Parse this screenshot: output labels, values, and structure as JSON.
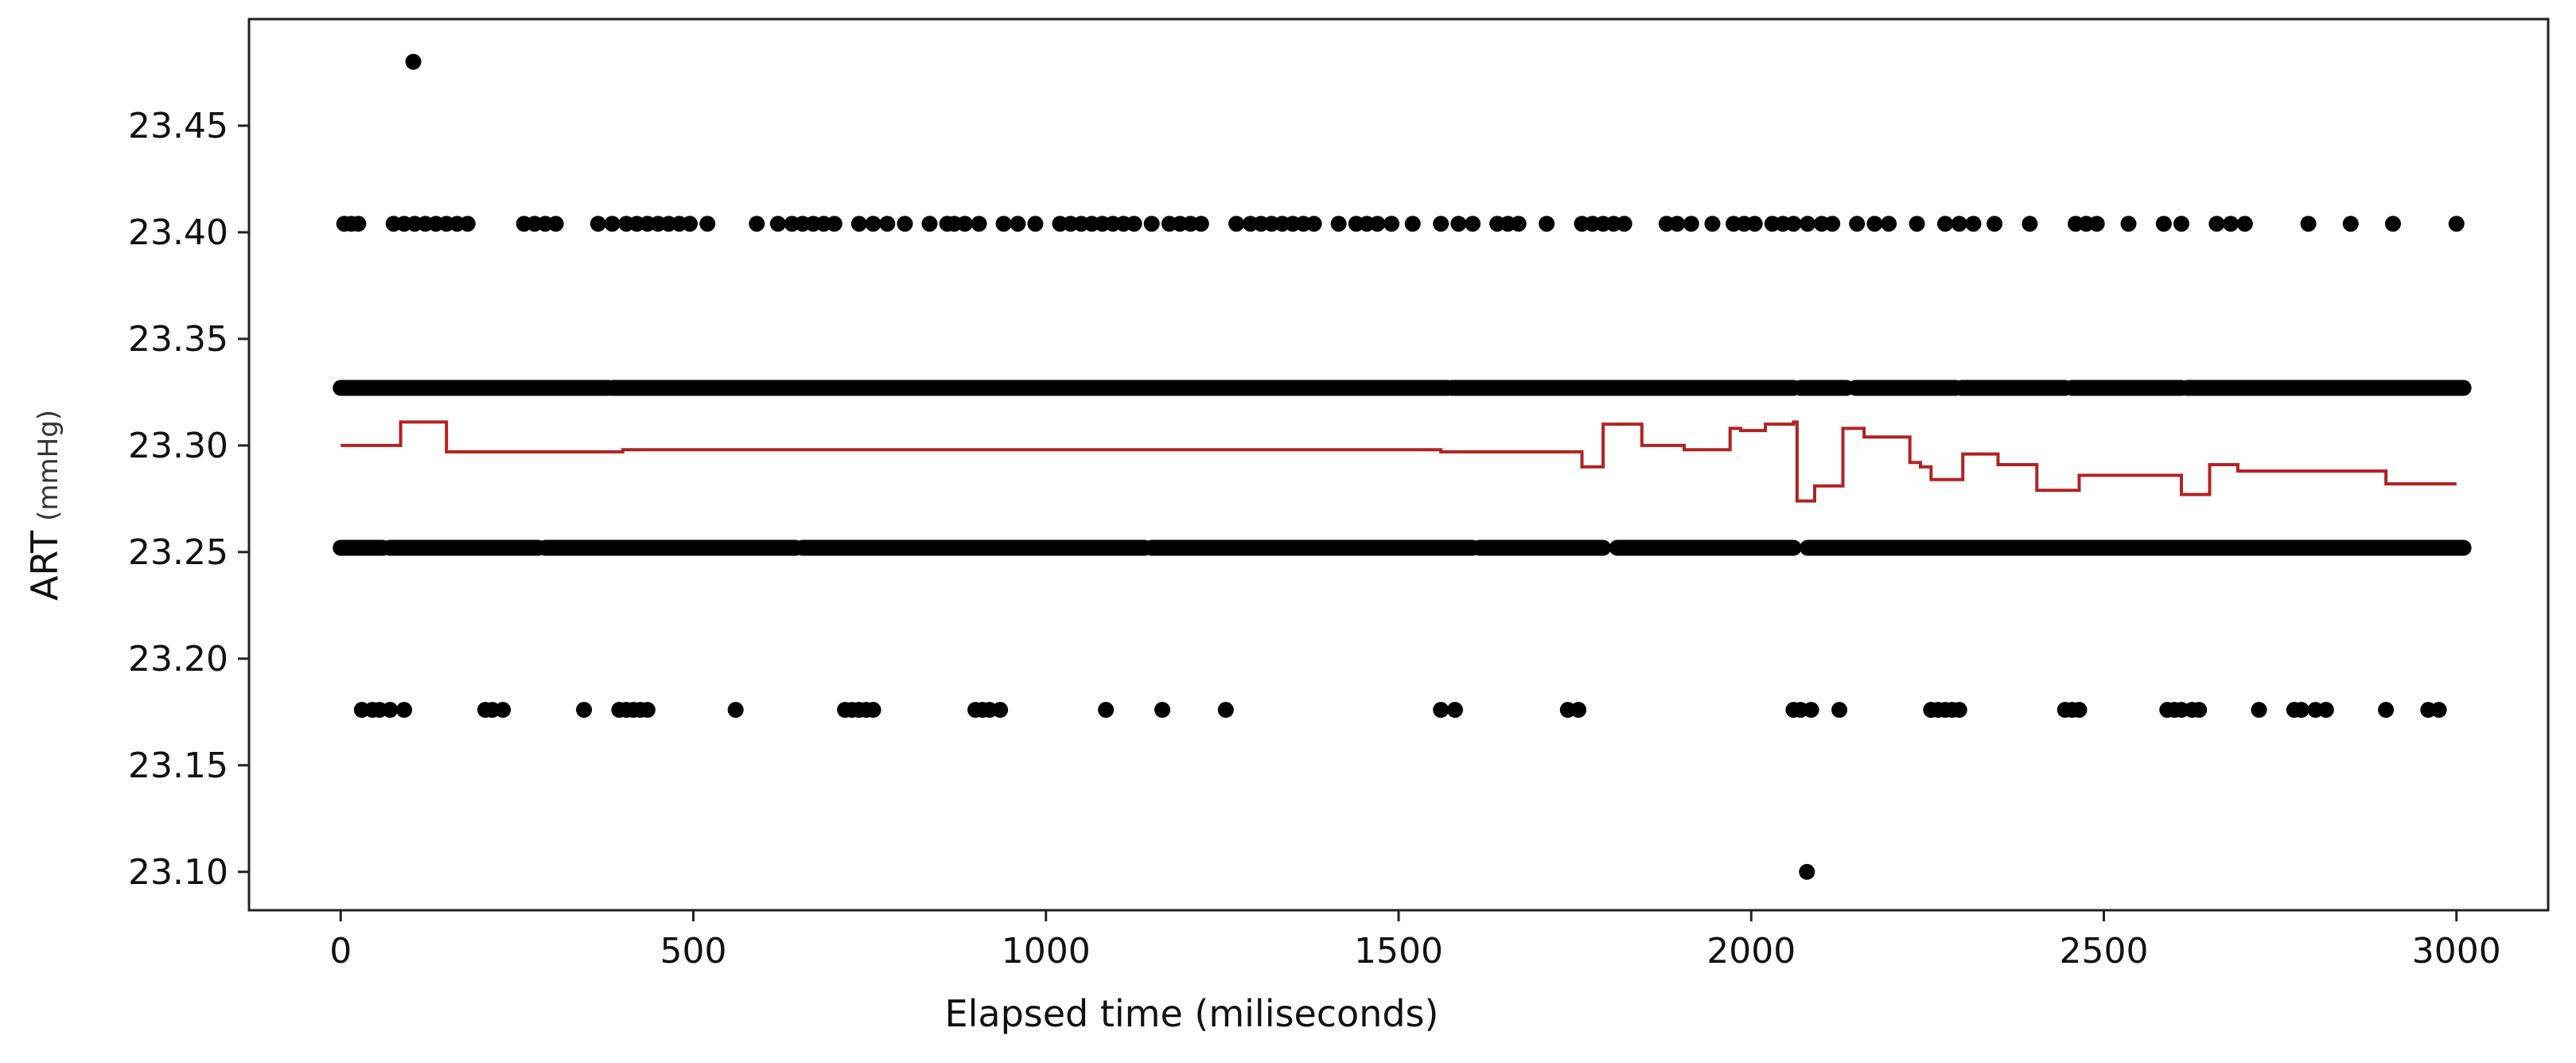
{
  "chart_data": {
    "type": "scatter",
    "title": "",
    "xlabel": "Elapsed time (miliseconds)",
    "ylabel": "ART",
    "ylabel_unit": "(mmHg)",
    "xlim": [
      -130,
      3130
    ],
    "ylim": [
      23.082,
      23.5
    ],
    "x_ticks": [
      0,
      500,
      1000,
      1500,
      2000,
      2500,
      3000
    ],
    "y_ticks": [
      23.1,
      23.15,
      23.2,
      23.25,
      23.3,
      23.35,
      23.4,
      23.45
    ],
    "y_tick_labels": [
      "23.10",
      "23.15",
      "23.20",
      "23.25",
      "23.30",
      "23.35",
      "23.40",
      "23.45"
    ],
    "grid": false,
    "legend": "none",
    "colors": {
      "points": "#000000",
      "line": "#b22222"
    },
    "series": [
      {
        "kind": "points",
        "level_rows": [
          {
            "y": 23.327,
            "segments": [
              [
                0,
                380
              ],
              [
                386,
                1570
              ],
              [
                1576,
                2060
              ],
              [
                2070,
                2135
              ],
              [
                2148,
                2290
              ],
              [
                2298,
                2445
              ],
              [
                2455,
                2610
              ],
              [
                2618,
                3010
              ]
            ]
          },
          {
            "y": 23.252,
            "segments": [
              [
                0,
                60
              ],
              [
                70,
                280
              ],
              [
                290,
                645
              ],
              [
                655,
                1140
              ],
              [
                1150,
                1605
              ],
              [
                1615,
                1790
              ],
              [
                1810,
                2060
              ],
              [
                2080,
                3010
              ]
            ]
          }
        ],
        "scatter_rows": [
          {
            "y": 23.404,
            "x": [
              5,
              15,
              25,
              75,
              90,
              105,
              120,
              135,
              150,
              165,
              180,
              260,
              275,
              290,
              305,
              365,
              385,
              405,
              420,
              435,
              450,
              465,
              480,
              495,
              520,
              590,
              620,
              640,
              655,
              670,
              685,
              700,
              735,
              755,
              775,
              800,
              835,
              860,
              870,
              885,
              905,
              940,
              960,
              985,
              1020,
              1035,
              1050,
              1065,
              1080,
              1095,
              1110,
              1125,
              1150,
              1175,
              1190,
              1205,
              1220,
              1270,
              1290,
              1305,
              1320,
              1335,
              1350,
              1365,
              1380,
              1415,
              1440,
              1455,
              1470,
              1490,
              1520,
              1560,
              1585,
              1605,
              1640,
              1655,
              1670,
              1710,
              1760,
              1775,
              1790,
              1805,
              1820,
              1880,
              1895,
              1915,
              1945,
              1975,
              1990,
              2005,
              2030,
              2045,
              2060,
              2080,
              2100,
              2115,
              2150,
              2175,
              2195,
              2235,
              2275,
              2295,
              2315,
              2345,
              2395,
              2460,
              2475,
              2490,
              2535,
              2585,
              2610,
              2660,
              2680,
              2700,
              2790,
              2850,
              2910,
              3000
            ]
          },
          {
            "y": 23.176,
            "x": [
              30,
              45,
              55,
              70,
              90,
              205,
              215,
              230,
              345,
              395,
              405,
              415,
              425,
              435,
              560,
              715,
              725,
              735,
              745,
              755,
              900,
              910,
              920,
              935,
              1085,
              1165,
              1255,
              1560,
              1580,
              1740,
              1755,
              2060,
              2070,
              2085,
              2125,
              2255,
              2265,
              2275,
              2285,
              2295,
              2445,
              2455,
              2465,
              2590,
              2600,
              2610,
              2625,
              2635,
              2720,
              2770,
              2780,
              2800,
              2815,
              2900,
              2960,
              2975
            ]
          },
          {
            "y": 23.48,
            "x": [
              103
            ]
          },
          {
            "y": 23.1,
            "x": [
              2079
            ]
          }
        ]
      },
      {
        "kind": "line",
        "step": true,
        "x": [
          0,
          85,
          85,
          150,
          150,
          400,
          400,
          1560,
          1560,
          1760,
          1760,
          1790,
          1790,
          1845,
          1845,
          1905,
          1905,
          1970,
          1970,
          1985,
          1985,
          2020,
          2020,
          2060,
          2060,
          2065,
          2065,
          2090,
          2090,
          2130,
          2130,
          2160,
          2160,
          2225,
          2225,
          2240,
          2240,
          2255,
          2255,
          2300,
          2300,
          2350,
          2350,
          2405,
          2405,
          2465,
          2465,
          2610,
          2610,
          2650,
          2650,
          2690,
          2690,
          2900,
          2900,
          3000
        ],
        "y": [
          23.3,
          23.3,
          23.311,
          23.311,
          23.297,
          23.297,
          23.298,
          23.298,
          23.297,
          23.297,
          23.29,
          23.29,
          23.31,
          23.31,
          23.3,
          23.3,
          23.298,
          23.298,
          23.308,
          23.308,
          23.307,
          23.307,
          23.31,
          23.31,
          23.311,
          23.311,
          23.274,
          23.274,
          23.281,
          23.281,
          23.308,
          23.308,
          23.304,
          23.304,
          23.292,
          23.292,
          23.29,
          23.29,
          23.284,
          23.284,
          23.296,
          23.296,
          23.291,
          23.291,
          23.279,
          23.279,
          23.286,
          23.286,
          23.277,
          23.277,
          23.291,
          23.291,
          23.288,
          23.288,
          23.282,
          23.282
        ]
      }
    ]
  }
}
